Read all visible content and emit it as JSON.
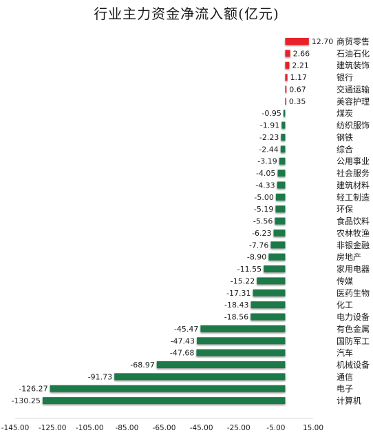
{
  "chart_data": {
    "type": "bar",
    "orientation": "horizontal",
    "title": "行业主力资金净流入额(亿元)",
    "xlabel": "",
    "ylabel": "",
    "xlim": [
      -145,
      15
    ],
    "x_ticks": [
      "-145.00",
      "-125.00",
      "-105.00",
      "-85.00",
      "-65.00",
      "-45.00",
      "-25.00",
      "-5.00",
      "15.00"
    ],
    "x_tick_values": [
      -145,
      -125,
      -105,
      -85,
      -65,
      -45,
      -25,
      -5,
      15
    ],
    "grid": false,
    "legend": "none",
    "positive_color": "#e8202a",
    "negative_color": "#1e7a4a",
    "categories": [
      "商贸零售",
      "石油石化",
      "建筑装饰",
      "银行",
      "交通运输",
      "美容护理",
      "煤炭",
      "纺织服饰",
      "钢铁",
      "综合",
      "公用事业",
      "社会服务",
      "建筑材料",
      "轻工制造",
      "环保",
      "食品饮料",
      "农林牧渔",
      "非银金融",
      "房地产",
      "家用电器",
      "传媒",
      "医药生物",
      "化工",
      "电力设备",
      "有色金属",
      "国防军工",
      "汽车",
      "机械设备",
      "通信",
      "电子",
      "计算机"
    ],
    "values": [
      12.7,
      2.66,
      2.21,
      1.17,
      0.67,
      0.35,
      -0.95,
      -1.91,
      -2.23,
      -2.44,
      -3.19,
      -4.05,
      -4.33,
      -5.0,
      -5.19,
      -5.56,
      -6.23,
      -7.76,
      -8.9,
      -11.55,
      -15.22,
      -17.31,
      -18.43,
      -18.56,
      -45.47,
      -47.43,
      -47.68,
      -68.97,
      -91.73,
      -126.27,
      -130.25
    ],
    "value_labels": [
      "12.70",
      "2.66",
      "2.21",
      "1.17",
      "0.67",
      "0.35",
      "-0.95",
      "-1.91",
      "-2.23",
      "-2.44",
      "-3.19",
      "-4.05",
      "-4.33",
      "-5.00",
      "-5.19",
      "-5.56",
      "-6.23",
      "-7.76",
      "-8.90",
      "-11.55",
      "-15.22",
      "-17.31",
      "-18.43",
      "-18.56",
      "-45.47",
      "-47.43",
      "-47.68",
      "-68.97",
      "-91.73",
      "-126.27",
      "-130.25"
    ]
  }
}
